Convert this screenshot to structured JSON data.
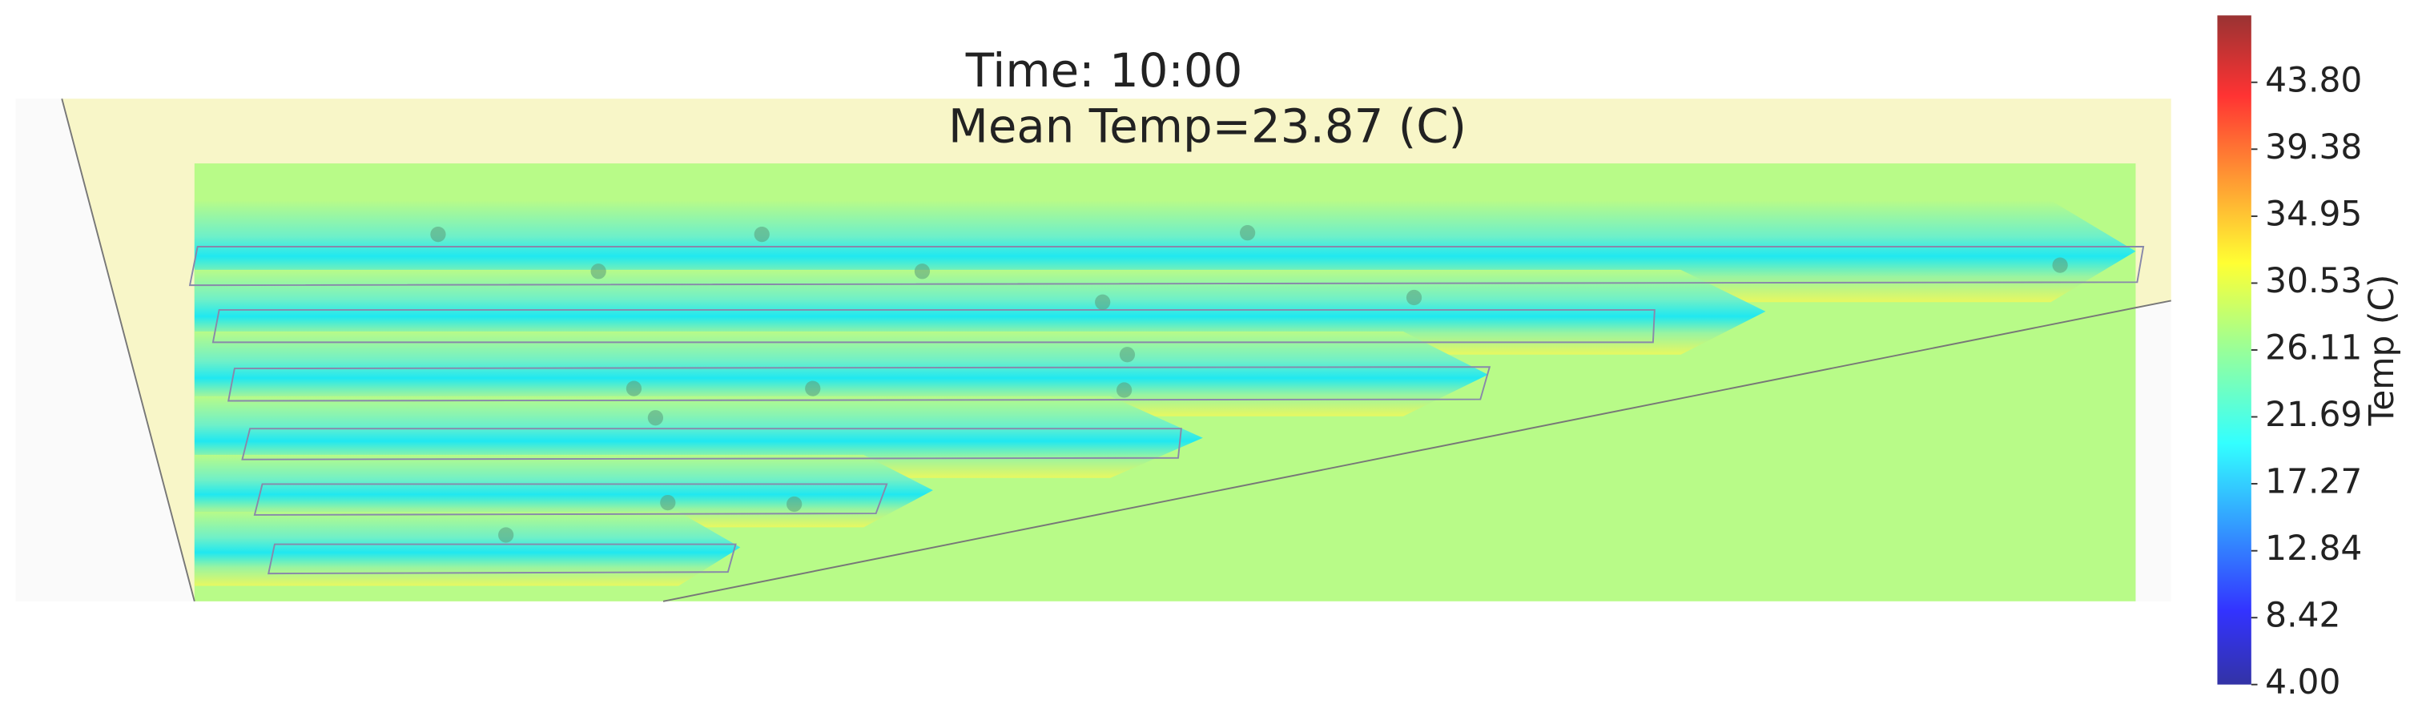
{
  "chart_data": {
    "type": "heatmap",
    "title": "Time: 10:00",
    "subtitle": "Mean Temp=23.87 (C)",
    "colorbar_label": "Temp (C)",
    "colormap": "jet",
    "clim": [
      4,
      48.22
    ],
    "cticks": [
      {
        "value": 4,
        "label": "4.00"
      },
      {
        "value": 8.42,
        "label": "8.42"
      },
      {
        "value": 12.84,
        "label": "12.84"
      },
      {
        "value": 17.27,
        "label": "17.27"
      },
      {
        "value": 21.69,
        "label": "21.69"
      },
      {
        "value": 26.11,
        "label": "26.11"
      },
      {
        "value": 30.53,
        "label": "30.53"
      },
      {
        "value": 34.95,
        "label": "34.95"
      },
      {
        "value": 39.38,
        "label": "39.38"
      },
      {
        "value": 43.8,
        "label": "43.80"
      }
    ]
  }
}
